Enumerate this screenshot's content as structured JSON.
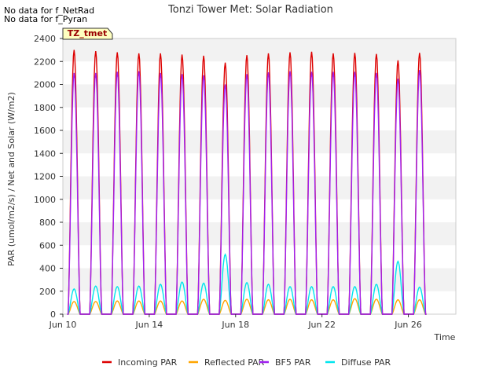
{
  "notes": [
    "No data for f_NetRad",
    "No data for f_Pyran"
  ],
  "chart_data": {
    "type": "line",
    "title": "Tonzi Tower Met: Solar Radiation",
    "xlabel": "Time",
    "ylabel": "PAR (umol/m2/s) / Net and Solar (W/m2)",
    "xlim": [
      10.0,
      28.2
    ],
    "ylim": [
      0,
      2400
    ],
    "yticks": [
      0,
      200,
      400,
      600,
      800,
      1000,
      1200,
      1400,
      1600,
      1800,
      2000,
      2200,
      2400
    ],
    "xticks": [
      {
        "day": 10,
        "label": "Jun 10"
      },
      {
        "day": 14,
        "label": "Jun 14"
      },
      {
        "day": 18,
        "label": "Jun 18"
      },
      {
        "day": 22,
        "label": "Jun 22"
      },
      {
        "day": 26,
        "label": "Jun 26"
      }
    ],
    "days": [
      10,
      11,
      12,
      13,
      14,
      15,
      16,
      17,
      18,
      19,
      20,
      21,
      22,
      23,
      24,
      25,
      26,
      27
    ],
    "series": [
      {
        "name": "Incoming PAR",
        "color": "#dd0000",
        "daily_peaks": [
          2300,
          2290,
          2280,
          2270,
          2270,
          2260,
          2250,
          2190,
          2255,
          2270,
          2280,
          2285,
          2270,
          2275,
          2265,
          2210,
          2275
        ]
      },
      {
        "name": "Reflected PAR",
        "color": "#ffa500",
        "daily_peaks": [
          110,
          110,
          115,
          115,
          115,
          115,
          130,
          120,
          130,
          125,
          130,
          125,
          125,
          135,
          130,
          125,
          125
        ]
      },
      {
        "name": "BF5 PAR",
        "color": "#a020f0",
        "daily_peaks": [
          2100,
          2100,
          2110,
          2115,
          2100,
          2090,
          2080,
          2000,
          2090,
          2105,
          2115,
          2110,
          2110,
          2110,
          2100,
          2050,
          2125
        ]
      },
      {
        "name": "Diffuse PAR",
        "color": "#00e5ee",
        "daily_peaks": [
          220,
          245,
          240,
          245,
          260,
          280,
          270,
          520,
          275,
          260,
          240,
          240,
          240,
          240,
          260,
          460,
          235
        ]
      }
    ],
    "legend_position": "bottom",
    "legend_box_label": "TZ_tmet",
    "grid": true
  }
}
